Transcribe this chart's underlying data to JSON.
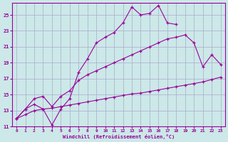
{
  "bg_color": "#cce8e8",
  "grid_color": "#aaaacc",
  "line_color": "#990099",
  "xlabel": "Windchill (Refroidissement éolien,°C)",
  "xlim": [
    -0.5,
    23.5
  ],
  "ylim": [
    11,
    26.5
  ],
  "yticks": [
    11,
    13,
    15,
    17,
    19,
    21,
    23,
    25
  ],
  "xticks": [
    0,
    1,
    2,
    3,
    4,
    5,
    6,
    7,
    8,
    9,
    10,
    11,
    12,
    13,
    14,
    15,
    16,
    17,
    18,
    19,
    20,
    21,
    22,
    23
  ],
  "curve1_x": [
    0,
    1,
    2,
    3,
    4,
    5,
    6,
    7,
    8,
    9,
    10,
    11,
    12,
    13,
    14,
    15,
    16,
    17,
    18
  ],
  "curve1_y": [
    12.0,
    13.2,
    13.8,
    13.2,
    11.2,
    13.2,
    14.5,
    17.8,
    19.5,
    21.5,
    22.2,
    22.8,
    24.0,
    26.0,
    25.0,
    25.2,
    26.2,
    24.0,
    23.8
  ],
  "curve2_x": [
    0,
    1,
    2,
    3,
    4,
    5,
    6,
    7,
    8,
    9,
    10,
    11,
    12,
    13,
    14,
    15,
    16,
    17,
    18,
    19,
    20,
    21,
    22,
    23
  ],
  "curve2_y": [
    12.0,
    13.2,
    14.5,
    14.8,
    13.5,
    14.8,
    15.5,
    16.8,
    17.5,
    18.0,
    18.5,
    19.0,
    19.5,
    20.0,
    20.5,
    21.0,
    21.5,
    22.0,
    22.2,
    22.5,
    21.5,
    18.5,
    20.0,
    18.8
  ],
  "curve3_x": [
    0,
    1,
    2,
    3,
    4,
    5,
    6,
    7,
    8,
    9,
    10,
    11,
    12,
    13,
    14,
    15,
    16,
    17,
    18,
    19,
    20,
    21,
    22,
    23
  ],
  "curve3_y": [
    12.0,
    12.5,
    13.0,
    13.2,
    13.3,
    13.5,
    13.7,
    13.9,
    14.1,
    14.3,
    14.5,
    14.7,
    14.9,
    15.1,
    15.2,
    15.4,
    15.6,
    15.8,
    16.0,
    16.2,
    16.4,
    16.6,
    16.9,
    17.2
  ]
}
